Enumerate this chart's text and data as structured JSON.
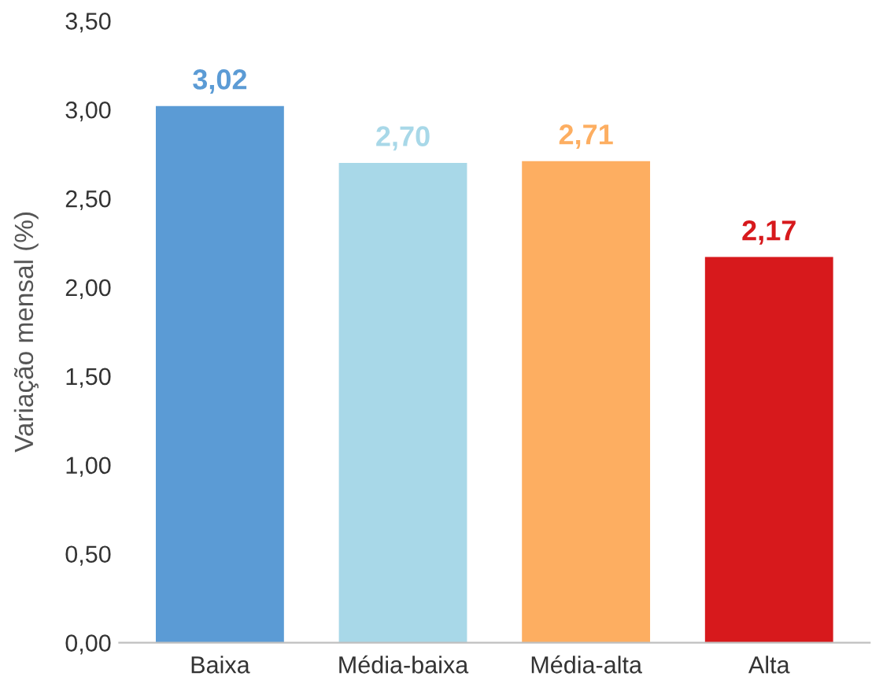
{
  "chart_data": {
    "type": "bar",
    "ylabel": "Variação mensal (%)",
    "categories": [
      "Baixa",
      "Média-baixa",
      "Média-alta",
      "Alta"
    ],
    "values": [
      3.02,
      2.7,
      2.71,
      2.17
    ],
    "colors": [
      "#5b9bd5",
      "#a8d8e8",
      "#fdae61",
      "#d7191c"
    ],
    "value_labels": [
      "3,02",
      "2,70",
      "2,71",
      "2,17"
    ],
    "ylim": [
      0,
      3.5
    ],
    "yticks": [
      {
        "value": 0,
        "label": "0,00"
      },
      {
        "value": 0.5,
        "label": "0,50"
      },
      {
        "value": 1,
        "label": "1,00"
      },
      {
        "value": 1.5,
        "label": "1,50"
      },
      {
        "value": 2,
        "label": "2,00"
      },
      {
        "value": 2.5,
        "label": "2,50"
      },
      {
        "value": 3,
        "label": "3,00"
      },
      {
        "value": 3.5,
        "label": "3,50"
      }
    ],
    "grid": false,
    "legend": false
  }
}
